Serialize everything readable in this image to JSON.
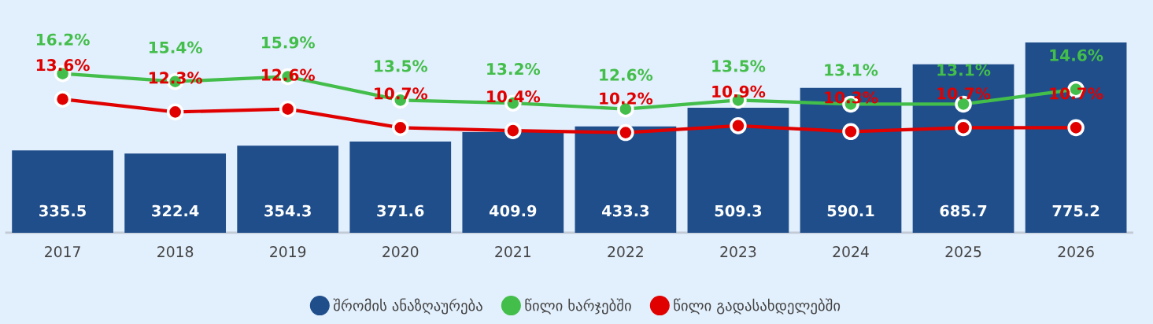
{
  "chart_data": {
    "type": "bar",
    "categories": [
      "2017",
      "2018",
      "2019",
      "2020",
      "2021",
      "2022",
      "2023",
      "2024",
      "2025",
      "2026"
    ],
    "series": [
      {
        "name": "შრომის ანაზღაურება",
        "color": "#1f4e8b",
        "values": [
          335.5,
          322.4,
          354.3,
          371.6,
          409.9,
          433.3,
          509.3,
          590.1,
          685.7,
          775.2
        ],
        "value_labels": [
          "335.5",
          "322.4",
          "354.3",
          "371.6",
          "409.9",
          "433.3",
          "509.3",
          "590.1",
          "685.7",
          "775.2"
        ]
      },
      {
        "name": "წილი ხარჯებში",
        "type": "line",
        "axis": "y2",
        "color": "#43be4b",
        "values": [
          16.2,
          15.4,
          15.9,
          13.5,
          13.2,
          12.6,
          13.5,
          13.1,
          13.1,
          14.6
        ],
        "value_labels": [
          "16.2%",
          "15.4%",
          "15.9%",
          "13.5%",
          "13.2%",
          "12.6%",
          "13.5%",
          "13.1%",
          "13.1%",
          "14.6%"
        ]
      },
      {
        "name": "წილი გადასახდელებში",
        "type": "line",
        "axis": "y2",
        "color": "#e00000",
        "values": [
          13.6,
          12.3,
          12.6,
          10.7,
          10.4,
          10.2,
          10.9,
          10.3,
          10.7,
          10.7
        ],
        "value_labels": [
          "13.6%",
          "12.3%",
          "12.6%",
          "10.7%",
          "10.4%",
          "10.2%",
          "10.9%",
          "10.3%",
          "10.7%",
          "10.7%"
        ]
      }
    ],
    "tick_labels": "x",
    "grid": false,
    "legend": "bottom",
    "marker": "circle",
    "line_style": "solid"
  }
}
